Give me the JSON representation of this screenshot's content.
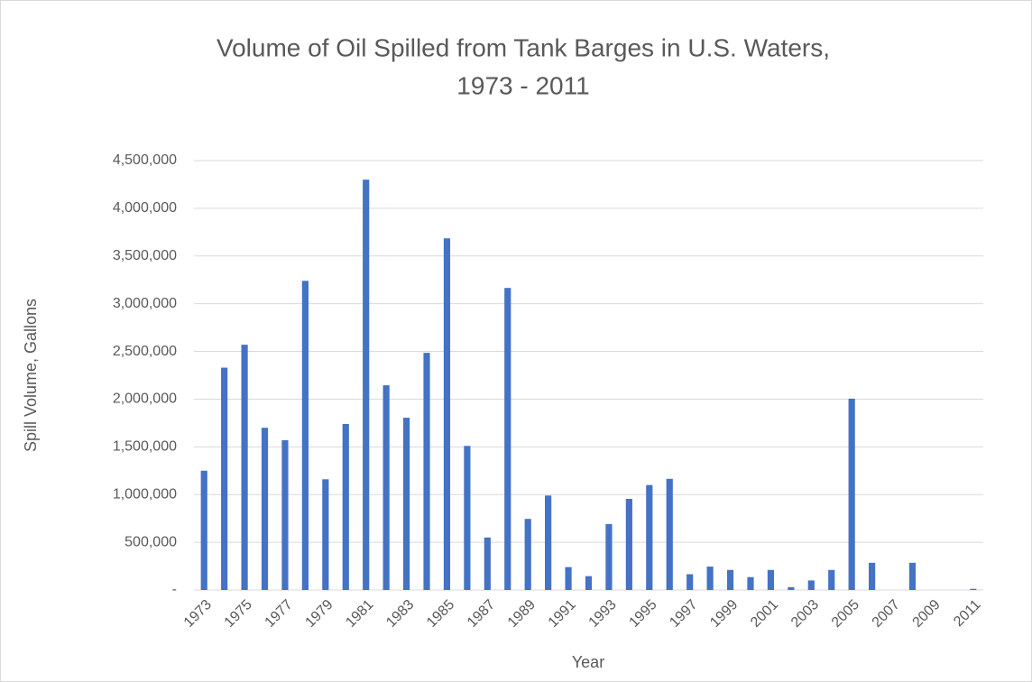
{
  "chart_data": {
    "type": "bar",
    "title": [
      "Volume of Oil Spilled from Tank Barges in U.S. Waters,",
      "1973 - 2011"
    ],
    "x_label": "Year",
    "y_label": "Spill Volume, Gallons",
    "categories": [
      "1973",
      null,
      "1975",
      null,
      "1977",
      null,
      "1979",
      null,
      "1981",
      null,
      "1983",
      null,
      "1985",
      null,
      "1987",
      null,
      "1989",
      null,
      "1991",
      null,
      "1993",
      null,
      "1995",
      null,
      "1997",
      null,
      "1999",
      null,
      "2001",
      null,
      "2003",
      null,
      "2005",
      null,
      "2007",
      null,
      "2009",
      null,
      "2011"
    ],
    "values": [
      1250000,
      2330000,
      2570000,
      1700000,
      1570000,
      3240000,
      1160000,
      1740000,
      4300000,
      2145000,
      1805000,
      2485000,
      3685000,
      1510000,
      550000,
      3165000,
      745000,
      990000,
      240000,
      145000,
      690000,
      955000,
      1100000,
      1165000,
      165000,
      245000,
      210000,
      135000,
      210000,
      30000,
      100000,
      210000,
      2005000,
      285000,
      0,
      285000,
      0,
      0,
      12000
    ],
    "color": "#4472c4",
    "ylim": [
      0,
      4500000
    ],
    "yticks": [
      {
        "value": 0,
        "label": "-"
      },
      {
        "value": 500000,
        "label": "500,000"
      },
      {
        "value": 1000000,
        "label": "1,000,000"
      },
      {
        "value": 1500000,
        "label": "1,500,000"
      },
      {
        "value": 2000000,
        "label": "2,000,000"
      },
      {
        "value": 2500000,
        "label": "2,500,000"
      },
      {
        "value": 3000000,
        "label": "3,000,000"
      },
      {
        "value": 3500000,
        "label": "3,500,000"
      },
      {
        "value": 4000000,
        "label": "4,000,000"
      },
      {
        "value": 4500000,
        "label": "4,500,000"
      }
    ],
    "grid": true
  }
}
